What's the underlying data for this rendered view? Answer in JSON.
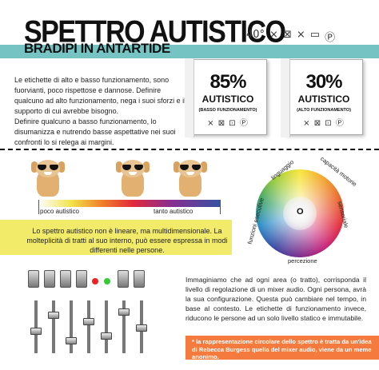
{
  "header": {
    "title": "SPETTRO AUTISTICO",
    "subtitle": "BRADIPI IN ANTARTIDE",
    "care_icons": [
      "40°",
      "⨯",
      "⊠",
      "⨯",
      "▭",
      "Ⓟ"
    ]
  },
  "intro": {
    "paragraph1": "Le etichette di alto e basso funzionamento, sono fuorvianti, poco rispettose e dannose. Definire qualcuno ad alto funzionamento, nega i suoi sforzi e il supporto di cui avrebbe bisogno.",
    "paragraph2": "Definire qualcuno a basso funzionamento, lo disumanizza e nutrendo basse aspettative nei suoi confronti lo si relega ai margini."
  },
  "labels": [
    {
      "percent": "85%",
      "word": "AUTISTICO",
      "note": "(BASSO FUNZIONAMENTO)",
      "icons": "⨯ ⊠ ⊡ Ⓟ"
    },
    {
      "percent": "30%",
      "word": "AUTISTICO",
      "note": "(ALTO FUNZIONAMENTO)",
      "icons": "⨯ ⊠ ⊡ Ⓟ"
    }
  ],
  "spectrum": {
    "left_label": "poco autistico",
    "right_label": "tanto autistico"
  },
  "wheel": {
    "center": "O",
    "segments": [
      "linguaggio",
      "capacità motorie",
      "sensoriale",
      "percezione",
      "funzioni esecutive"
    ]
  },
  "yellow_note": "Lo spettro autistico non è lineare, ma multidimensionale. La molteplicità di tratti al suo interno, può essere espressa in modi differenti nelle persone.",
  "mixer_text": "Immaginiamo che ad ogni area (o tratto), corrisponda il livello di regolazione di un mixer audio. Ogni persona, avrà la sua configurazione. Questa può cambiare nel tempo, in base al contesto. Le etichette di funzionamento invece, riducono le persone ad un solo livello statico e immutabile.",
  "footnote": "* la rappresentazione circolare dello spettro è tratta da un'idea di Rebecca Burgess quella del mixer audio, viene da un meme anonimo.",
  "colors": {
    "teal": "#76c3c3",
    "yellow": "#f2eb6a",
    "orange": "#f47a3d"
  }
}
